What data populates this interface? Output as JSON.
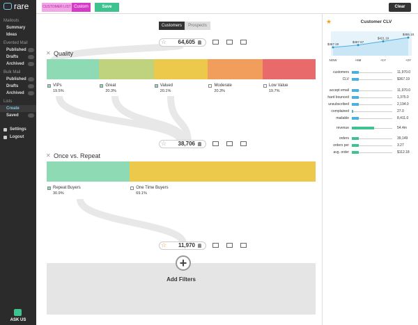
{
  "sidebar": {
    "logo": "rare",
    "sections": [
      {
        "title": "Mailouts",
        "items": [
          "Summary",
          "Ideas"
        ]
      },
      {
        "title": "Evented Mail",
        "items": [
          "Published",
          "Drafts",
          "Archived"
        ]
      },
      {
        "title": "Bulk Mail",
        "items": [
          "Published",
          "Drafts",
          "Archived"
        ]
      },
      {
        "title": "Lists",
        "items": [
          "Create",
          "Saved"
        ]
      }
    ],
    "footer_items": [
      "Settings",
      "Logout"
    ],
    "help": "ASK US"
  },
  "toolbar": {
    "list_type": "CUSTOMER LIST",
    "list_mode": "Custom",
    "save": "Save",
    "clear": "Clear"
  },
  "tabs": [
    "Customers",
    "Prospects"
  ],
  "counts": [
    "64,605",
    "38,706",
    "11,970"
  ],
  "filters": [
    {
      "title": "Quality",
      "segments": [
        {
          "name": "VIPs",
          "percent": "19.5%",
          "color": "#8ddab5",
          "checked": true
        },
        {
          "name": "Great",
          "percent": "20.3%",
          "color": "#bfd27e",
          "checked": true
        },
        {
          "name": "Valued",
          "percent": "20.1%",
          "color": "#ecc94b",
          "checked": true
        },
        {
          "name": "Moderate",
          "percent": "20.3%",
          "color": "#f19e5d",
          "checked": false
        },
        {
          "name": "Low Value",
          "percent": "19.7%",
          "color": "#e86a6a",
          "checked": false
        }
      ]
    },
    {
      "title": "Once vs. Repeat",
      "segments": [
        {
          "name": "Repeat Buyers",
          "percent": "30.9%",
          "color": "#8ddab5",
          "checked": true
        },
        {
          "name": "One Time Buyers",
          "percent": "69.1%",
          "color": "#ecc94b",
          "checked": false
        }
      ]
    }
  ],
  "add_filters": "Add Filters",
  "clv": {
    "title": "Customer CLV",
    "x": [
      "NOW",
      "+6M",
      "+1Y",
      "+2Y"
    ],
    "values": [
      367.19,
      387.57,
      421.19,
      455.18
    ],
    "value_labels": [
      "$367.19",
      "$387.57",
      "$421.19",
      "$455.18"
    ]
  },
  "metrics": [
    {
      "label": "customers",
      "value": "11,970.0"
    },
    {
      "label": "CLV",
      "value": "$367.19"
    },
    {
      "label": "accept email",
      "value": "11,970.0"
    },
    {
      "label": "hard bounced",
      "value": "1,375.0"
    },
    {
      "label": "unsubscribed",
      "value": "2,194.0"
    },
    {
      "label": "complained",
      "value": "27.0"
    },
    {
      "label": "mailable",
      "value": "8,411.0"
    },
    {
      "label": "revenue",
      "value": "54.4m"
    },
    {
      "label": "orders",
      "value": "39,149"
    },
    {
      "label": "orders per",
      "value": "3.27"
    },
    {
      "label": "avg. order",
      "value": "$112.18"
    }
  ]
}
